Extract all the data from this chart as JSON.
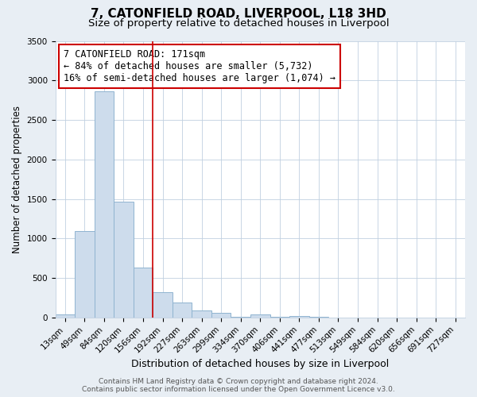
{
  "title": "7, CATONFIELD ROAD, LIVERPOOL, L18 3HD",
  "subtitle": "Size of property relative to detached houses in Liverpool",
  "xlabel": "Distribution of detached houses by size in Liverpool",
  "ylabel": "Number of detached properties",
  "bar_labels": [
    "13sqm",
    "49sqm",
    "84sqm",
    "120sqm",
    "156sqm",
    "192sqm",
    "227sqm",
    "263sqm",
    "299sqm",
    "334sqm",
    "370sqm",
    "406sqm",
    "441sqm",
    "477sqm",
    "513sqm",
    "549sqm",
    "584sqm",
    "620sqm",
    "656sqm",
    "691sqm",
    "727sqm"
  ],
  "bar_values": [
    40,
    1090,
    2860,
    1470,
    630,
    325,
    190,
    90,
    55,
    5,
    35,
    5,
    20,
    5,
    0,
    0,
    0,
    0,
    0,
    0,
    0
  ],
  "bar_color": "#cddcec",
  "bar_edgecolor": "#90b4d0",
  "property_line_x": 4.5,
  "property_line_color": "#cc0000",
  "annotation_text": "7 CATONFIELD ROAD: 171sqm\n← 84% of detached houses are smaller (5,732)\n16% of semi-detached houses are larger (1,074) →",
  "annotation_box_facecolor": "#ffffff",
  "annotation_box_edgecolor": "#cc0000",
  "ylim": [
    0,
    3500
  ],
  "yticks": [
    0,
    500,
    1000,
    1500,
    2000,
    2500,
    3000,
    3500
  ],
  "footer_line1": "Contains HM Land Registry data © Crown copyright and database right 2024.",
  "footer_line2": "Contains public sector information licensed under the Open Government Licence v3.0.",
  "fig_background_color": "#e8eef4",
  "plot_background_color": "#ffffff",
  "grid_color": "#c0d0e0",
  "title_fontsize": 11,
  "subtitle_fontsize": 9.5,
  "xlabel_fontsize": 9,
  "ylabel_fontsize": 8.5,
  "tick_fontsize": 7.5,
  "annotation_fontsize": 8.5,
  "footer_fontsize": 6.5
}
